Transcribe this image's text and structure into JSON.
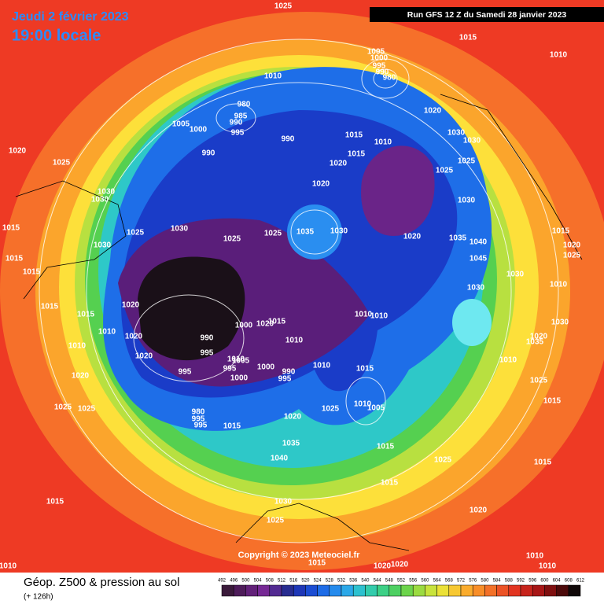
{
  "header": {
    "date": "Jeudi 2 février 2023",
    "time": "19:00 locale",
    "run": "Run GFS 12 Z du Samedi 28 janvier 2023"
  },
  "footer": {
    "title": "Géop. Z500 & pression au sol",
    "lead": "(+ 126h)",
    "copyright": "Copyright © 2023 Meteociel.fr"
  },
  "scale": [
    492,
    496,
    500,
    504,
    508,
    512,
    516,
    520,
    524,
    528,
    532,
    536,
    540,
    544,
    548,
    552,
    556,
    560,
    564,
    568,
    572,
    576,
    580,
    584,
    588,
    592,
    596,
    600,
    604,
    608,
    612
  ],
  "isobars": [
    1025,
    1015,
    1010,
    1005,
    1000,
    995,
    990,
    980,
    1010,
    980,
    985,
    990,
    1005,
    1000,
    995,
    990,
    990,
    1015,
    1010,
    1020,
    1030,
    1030,
    1015,
    1020,
    1025,
    1025,
    1020,
    1020,
    1025,
    1030,
    1030,
    1030,
    1015,
    1025,
    1030,
    1025,
    1025,
    1035,
    1030,
    1020,
    1035,
    1040,
    1045,
    1015,
    1020,
    1025,
    1015,
    1030,
    1015,
    1030,
    1010,
    1030,
    1020,
    1015,
    1015,
    1020,
    1000,
    1015,
    1010,
    1010,
    1010,
    1020,
    990,
    1030,
    1020,
    1035,
    1010,
    1020,
    1010,
    995,
    1010,
    1005,
    995,
    995,
    1000,
    990,
    995,
    1010,
    1015,
    1010,
    1000,
    1020,
    1025,
    1010,
    1005,
    1025,
    1025,
    1025,
    980,
    995,
    995,
    1015,
    1020,
    1015,
    1035,
    1015,
    1025,
    1040,
    1015,
    1015,
    1030,
    1015,
    1020,
    1025,
    1015,
    1020,
    1020,
    1010,
    1010,
    1010
  ]
}
